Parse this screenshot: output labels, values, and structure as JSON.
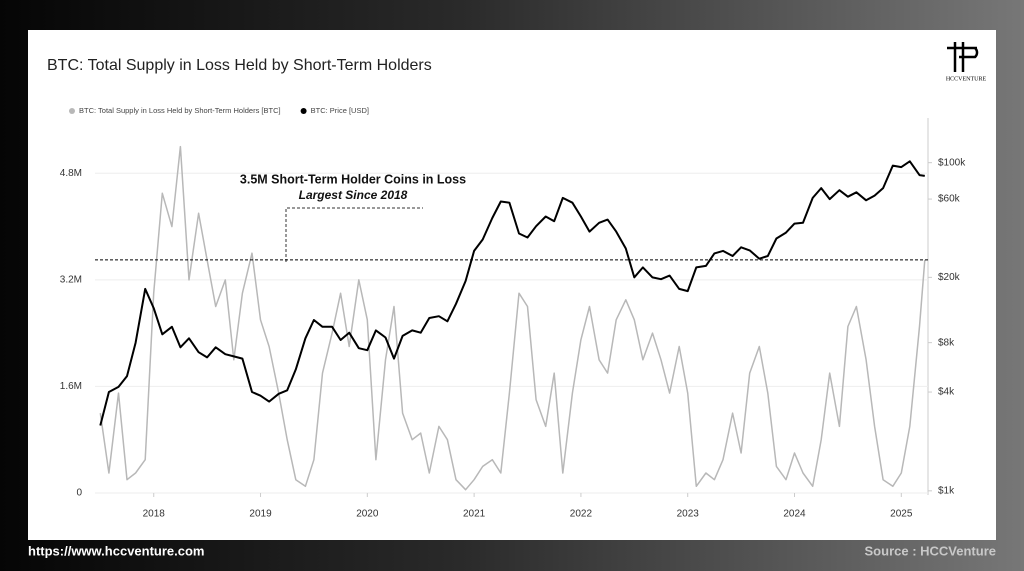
{
  "brand": {
    "logo_text": "HCCVENTURE",
    "url": "https://www.hccventure.com",
    "source": "Source : HCCVenture"
  },
  "chart_data": {
    "type": "line",
    "title": "BTC: Total Supply in Loss Held by Short-Term Holders",
    "annotation": {
      "text": "3.5M Short-Term Holder Coins in Loss",
      "subtext": "Largest Since 2018",
      "value": 3500000
    },
    "x": [
      2017.5,
      2017.58,
      2017.67,
      2017.75,
      2017.83,
      2017.92,
      2018,
      2018.08,
      2018.17,
      2018.25,
      2018.33,
      2018.42,
      2018.5,
      2018.58,
      2018.67,
      2018.75,
      2018.83,
      2018.92,
      2019,
      2019.08,
      2019.17,
      2019.25,
      2019.33,
      2019.42,
      2019.5,
      2019.58,
      2019.67,
      2019.75,
      2019.83,
      2019.92,
      2020,
      2020.08,
      2020.17,
      2020.25,
      2020.33,
      2020.42,
      2020.5,
      2020.58,
      2020.67,
      2020.75,
      2020.83,
      2020.92,
      2021,
      2021.08,
      2021.17,
      2021.25,
      2021.33,
      2021.42,
      2021.5,
      2021.58,
      2021.67,
      2021.75,
      2021.83,
      2021.92,
      2022,
      2022.08,
      2022.17,
      2022.25,
      2022.33,
      2022.42,
      2022.5,
      2022.58,
      2022.67,
      2022.75,
      2022.83,
      2022.92,
      2023,
      2023.08,
      2023.17,
      2023.25,
      2023.33,
      2023.42,
      2023.5,
      2023.58,
      2023.67,
      2023.75,
      2023.83,
      2023.92,
      2024,
      2024.08,
      2024.17,
      2024.25,
      2024.33,
      2024.42,
      2024.5,
      2024.58,
      2024.67,
      2024.75,
      2024.83,
      2024.92,
      2025,
      2025.08,
      2025.17,
      2025.22
    ],
    "xlim": [
      2017.45,
      2025.25
    ],
    "xticks": [
      2018,
      2019,
      2020,
      2021,
      2022,
      2023,
      2024,
      2025
    ],
    "ylim": [
      0,
      5600000
    ],
    "yticks": [
      0,
      {
        "value": 1600000,
        "label": "1.6M"
      },
      {
        "value": 3200000,
        "label": "3.2M"
      },
      {
        "value": 4800000,
        "label": "4.8M"
      }
    ],
    "y2lim": [
      970,
      182000
    ],
    "y2log": true,
    "y2ticks": [
      {
        "value": 1000,
        "label": "$1k"
      },
      {
        "value": 4000,
        "label": "$4k"
      },
      {
        "value": 8000,
        "label": "$8k"
      },
      {
        "value": 20000,
        "label": "$20k"
      },
      {
        "value": 60000,
        "label": "$60k"
      },
      {
        "value": 100000,
        "label": "$100k"
      }
    ],
    "grid": true,
    "series": [
      {
        "name": "BTC: Total Supply in Loss Held by Short-Term Holders [BTC]",
        "color": "#b8b8b8",
        "values": [
          1200000,
          300000,
          1500000,
          200000,
          300000,
          500000,
          3000000,
          4500000,
          4000000,
          5200000,
          3200000,
          4200000,
          3500000,
          2800000,
          3200000,
          2000000,
          3000000,
          3600000,
          2600000,
          2200000,
          1500000,
          800000,
          200000,
          100000,
          500000,
          1800000,
          2400000,
          3000000,
          2200000,
          3200000,
          2600000,
          500000,
          2000000,
          2800000,
          1200000,
          800000,
          900000,
          300000,
          1000000,
          800000,
          200000,
          50000,
          200000,
          400000,
          500000,
          300000,
          1500000,
          3000000,
          2800000,
          1400000,
          1000000,
          1800000,
          300000,
          1500000,
          2300000,
          2800000,
          2000000,
          1800000,
          2600000,
          2900000,
          2600000,
          2000000,
          2400000,
          2000000,
          1500000,
          2200000,
          1500000,
          100000,
          300000,
          200000,
          500000,
          1200000,
          600000,
          1800000,
          2200000,
          1500000,
          400000,
          200000,
          600000,
          300000,
          100000,
          800000,
          1800000,
          1000000,
          2500000,
          2800000,
          2000000,
          1000000,
          200000,
          100000,
          300000,
          1000000,
          2500000,
          3500000
        ]
      },
      {
        "name": "BTC: Price [USD]",
        "color": "#000000",
        "axis": "y2",
        "values": [
          2500,
          4000,
          4300,
          5000,
          8000,
          17000,
          13000,
          9000,
          10000,
          7500,
          8500,
          7000,
          6500,
          7500,
          6800,
          6600,
          6400,
          4000,
          3800,
          3500,
          3900,
          4100,
          5500,
          8500,
          11000,
          10000,
          10000,
          8300,
          9200,
          7400,
          7200,
          9500,
          8600,
          6400,
          8800,
          9500,
          9200,
          11300,
          11600,
          10800,
          13800,
          19000,
          29000,
          34000,
          46000,
          58000,
          57000,
          37000,
          35000,
          41000,
          47000,
          44000,
          61000,
          57000,
          47000,
          38000,
          43000,
          45000,
          38000,
          30000,
          20000,
          23000,
          20000,
          19500,
          20500,
          17000,
          16500,
          23000,
          23500,
          28000,
          29000,
          27000,
          30500,
          29200,
          26000,
          27000,
          34500,
          37500,
          42500,
          43000,
          61000,
          70000,
          60000,
          68000,
          62000,
          66000,
          59000,
          63000,
          70000,
          96000,
          94000,
          102000,
          84000,
          83000
        ]
      }
    ]
  }
}
